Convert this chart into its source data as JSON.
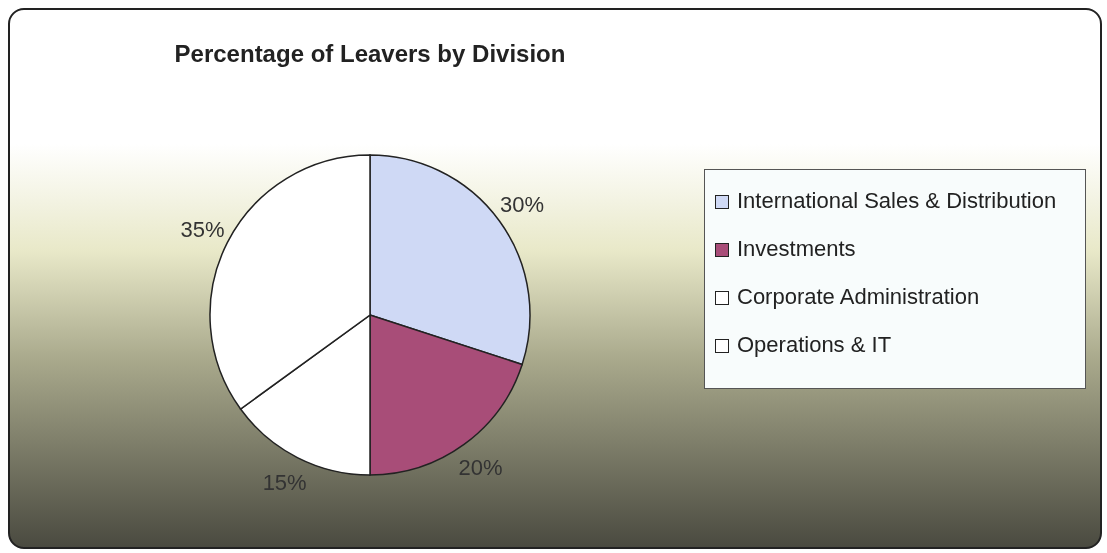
{
  "chart_data": {
    "type": "pie",
    "title": "Percentage of Leavers by Division",
    "categories": [
      "International Sales & Distribution",
      "Investments",
      "Corporate Administration",
      "Operations & IT"
    ],
    "values": [
      30,
      20,
      15,
      35
    ],
    "colors": [
      "#cfd9f5",
      "#a84d78",
      "#ffffff",
      "#ffffff"
    ],
    "value_labels": [
      "30%",
      "20%",
      "15%",
      "35%"
    ],
    "legend": "right"
  }
}
